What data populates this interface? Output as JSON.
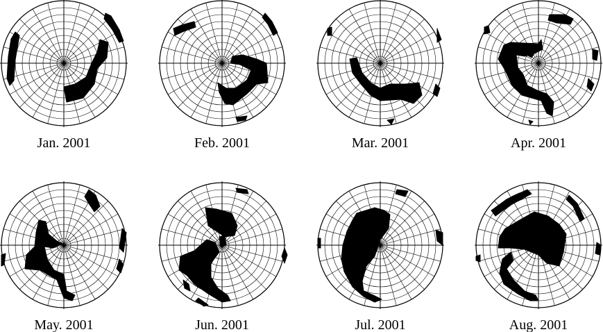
{
  "panels": [
    {
      "label": "Jan. 2001"
    },
    {
      "label": "Feb. 2001"
    },
    {
      "label": "Mar. 2001"
    },
    {
      "label": "Apr. 2001"
    },
    {
      "label": "May. 2001"
    },
    {
      "label": "Jun. 2001"
    },
    {
      "label": "Jul. 2001"
    },
    {
      "label": "Aug. 2001"
    }
  ]
}
